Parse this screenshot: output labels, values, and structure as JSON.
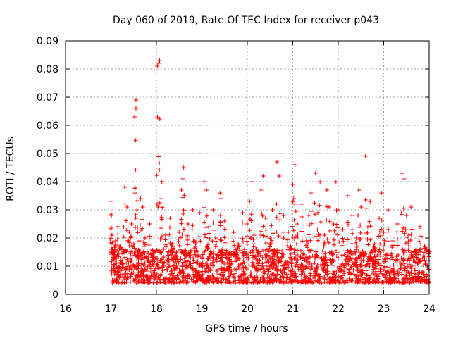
{
  "chart_data": {
    "type": "scatter",
    "title": "Day 060 of 2019, Rate Of TEC Index for receiver p043",
    "xlabel": "GPS time / hours",
    "ylabel": "ROTI / TECUs",
    "xlim": [
      16,
      24
    ],
    "ylim": [
      0,
      0.09
    ],
    "xticks": [
      16,
      17,
      18,
      19,
      20,
      21,
      22,
      23,
      24
    ],
    "xtick_labels": [
      "16",
      "17",
      "18",
      "19",
      "20",
      "21",
      "22",
      "23",
      "24"
    ],
    "yticks": [
      0,
      0.01,
      0.02,
      0.03,
      0.04,
      0.05,
      0.06,
      0.07,
      0.08,
      0.09
    ],
    "ytick_labels": [
      "0",
      "0.01",
      "0.02",
      "0.03",
      "0.04",
      "0.05",
      "0.06",
      "0.07",
      "0.08",
      "0.09"
    ],
    "grid": true,
    "marker": "+",
    "color": "#ff0000",
    "series": [
      {
        "name": "ROTI",
        "x": [
          17.0,
          17.01,
          17.02,
          17.03,
          17.05,
          17.05,
          17.08,
          17.1,
          17.12,
          17.15,
          17.2,
          17.22,
          17.3,
          17.35,
          17.4,
          17.45,
          17.5,
          17.52,
          17.55,
          17.55,
          17.57,
          17.6,
          17.65,
          17.7,
          17.75,
          17.8,
          17.85,
          17.9,
          17.95,
          18.02,
          18.05,
          18.07,
          18.1,
          18.12,
          18.15,
          18.2,
          18.25,
          18.3,
          18.35,
          18.4,
          18.5,
          18.55,
          18.58,
          18.6,
          18.62,
          18.7,
          18.75,
          18.8,
          18.85,
          18.9,
          18.95,
          19.05,
          19.1,
          19.12,
          19.15,
          19.2,
          19.25,
          19.3,
          19.4,
          19.42,
          19.45,
          19.5,
          19.6,
          19.7,
          19.8,
          19.9,
          20.0,
          20.05,
          20.1,
          20.15,
          20.2,
          20.3,
          20.35,
          20.4,
          20.5,
          20.55,
          20.6,
          20.65,
          20.7,
          20.8,
          20.9,
          20.95,
          21.0,
          21.02,
          21.05,
          21.1,
          21.2,
          21.3,
          21.35,
          21.4,
          21.5,
          21.55,
          21.6,
          21.7,
          21.75,
          21.8,
          21.9,
          21.95,
          22.0,
          22.1,
          22.2,
          22.3,
          22.4,
          22.45,
          22.5,
          22.6,
          22.65,
          22.7,
          22.8,
          22.9,
          22.95,
          23.0,
          23.1,
          23.2,
          23.3,
          23.4,
          23.45,
          23.5,
          23.55,
          23.6,
          23.7,
          23.8,
          23.9,
          24.0
        ],
        "y": [
          0.033,
          0.028,
          0.021,
          0.016,
          0.012,
          0.009,
          0.014,
          0.019,
          0.011,
          0.024,
          0.017,
          0.009,
          0.038,
          0.031,
          0.022,
          0.025,
          0.018,
          0.063,
          0.066,
          0.069,
          0.03,
          0.015,
          0.034,
          0.031,
          0.02,
          0.012,
          0.025,
          0.008,
          0.011,
          0.081,
          0.082,
          0.083,
          0.034,
          0.04,
          0.016,
          0.021,
          0.012,
          0.027,
          0.018,
          0.009,
          0.022,
          0.037,
          0.041,
          0.045,
          0.014,
          0.025,
          0.013,
          0.03,
          0.019,
          0.011,
          0.029,
          0.04,
          0.037,
          0.017,
          0.024,
          0.012,
          0.03,
          0.02,
          0.036,
          0.034,
          0.014,
          0.026,
          0.011,
          0.022,
          0.018,
          0.029,
          0.025,
          0.033,
          0.04,
          0.021,
          0.016,
          0.037,
          0.042,
          0.027,
          0.02,
          0.03,
          0.014,
          0.047,
          0.042,
          0.028,
          0.022,
          0.017,
          0.039,
          0.034,
          0.046,
          0.025,
          0.032,
          0.019,
          0.028,
          0.036,
          0.043,
          0.029,
          0.04,
          0.021,
          0.037,
          0.031,
          0.025,
          0.04,
          0.03,
          0.023,
          0.035,
          0.028,
          0.02,
          0.037,
          0.031,
          0.049,
          0.024,
          0.033,
          0.018,
          0.027,
          0.036,
          0.022,
          0.03,
          0.019,
          0.025,
          0.043,
          0.041,
          0.028,
          0.021,
          0.031,
          0.015,
          0.024,
          0.017,
          0.012
        ],
        "baseline_range": [
          0.004,
          0.016
        ],
        "baseline_note": "dense band of points between roughly 0.004 and 0.016 TECU from 17 to 24 hours"
      }
    ]
  }
}
